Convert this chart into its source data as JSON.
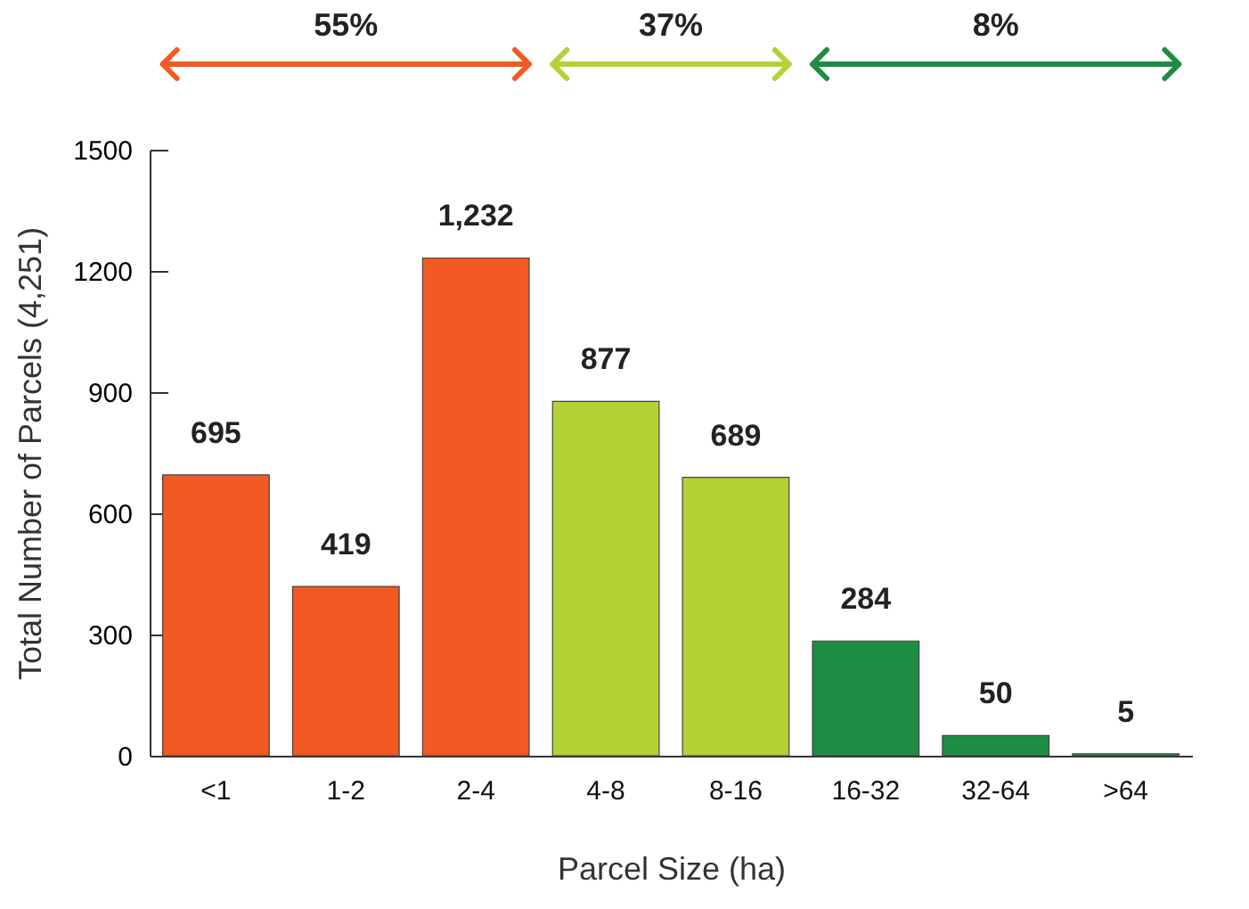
{
  "chart_data": {
    "type": "bar",
    "xlabel": "Parcel Size (ha)",
    "ylabel": "Total Number of Parcels (4,251)",
    "categories": [
      "<1",
      "1-2",
      "2-4",
      "4-8",
      "8-16",
      "16-32",
      "32-64",
      ">64"
    ],
    "values": [
      695,
      419,
      1232,
      877,
      689,
      284,
      50,
      5
    ],
    "colors": [
      "#f15a22",
      "#f15a22",
      "#f15a22",
      "#b2d235",
      "#b2d235",
      "#1e8c45",
      "#1e8c45",
      "#1e8c45"
    ],
    "ylim": [
      0,
      1500
    ],
    "yticks": [
      0,
      300,
      600,
      900,
      1200,
      1500
    ],
    "value_labels": [
      "695",
      "419",
      "1,232",
      "877",
      "689",
      "284",
      "50",
      "5"
    ],
    "annotations": [
      "55%",
      "37%",
      "8%"
    ]
  }
}
